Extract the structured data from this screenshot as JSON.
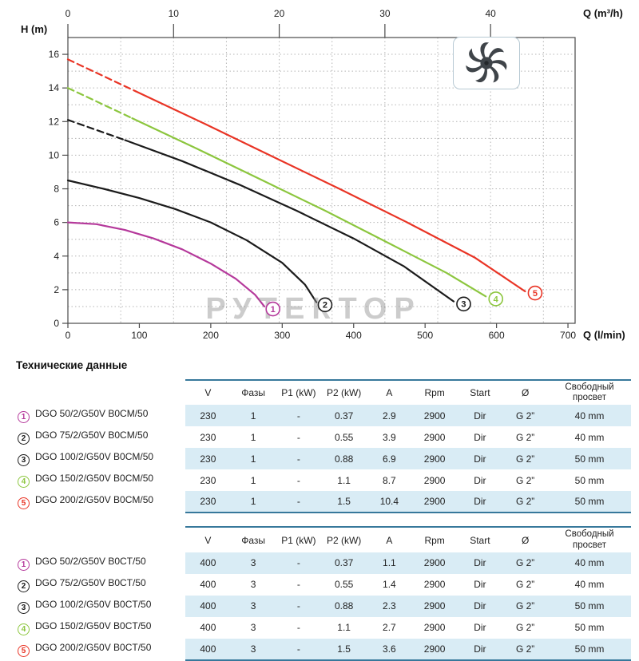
{
  "section_title": "Технические данные",
  "watermark": "РУТЕКТОР",
  "chart_data": {
    "type": "line",
    "title": "",
    "y_axis": {
      "label": "H (m)",
      "range": [
        0,
        17
      ],
      "ticks": [
        0,
        2,
        4,
        6,
        8,
        10,
        12,
        14,
        16
      ],
      "grid_step": 1
    },
    "x_axis_bottom": {
      "label": "Q (l/min)",
      "range": [
        0,
        710
      ],
      "ticks": [
        0,
        100,
        200,
        300,
        400,
        500,
        600,
        700
      ]
    },
    "x_axis_top": {
      "label": "Q (m³/h)",
      "range": [
        0,
        48
      ],
      "ticks": [
        0,
        10,
        20,
        30,
        40
      ],
      "grid_step": 5
    },
    "grid": true,
    "legend_position": "end-of-curve-badges",
    "series": [
      {
        "id": "1",
        "model": "DGO 50",
        "color": "#b5399b",
        "dash_until": 0,
        "points": [
          [
            0,
            6.0
          ],
          [
            40,
            5.9
          ],
          [
            80,
            5.55
          ],
          [
            120,
            5.05
          ],
          [
            160,
            4.4
          ],
          [
            200,
            3.55
          ],
          [
            235,
            2.65
          ],
          [
            262,
            1.7
          ],
          [
            275,
            1.0
          ]
        ],
        "marker": [
          287,
          0.85
        ]
      },
      {
        "id": "2",
        "model": "DGO 75",
        "color": "#1b1b1b",
        "dash_until": 0,
        "points": [
          [
            0,
            8.5
          ],
          [
            50,
            8.0
          ],
          [
            100,
            7.45
          ],
          [
            150,
            6.8
          ],
          [
            200,
            6.0
          ],
          [
            250,
            4.95
          ],
          [
            300,
            3.6
          ],
          [
            332,
            2.3
          ],
          [
            348,
            1.25
          ]
        ],
        "marker": [
          360,
          1.1
        ]
      },
      {
        "id": "3",
        "model": "DGO 100",
        "color": "#1b1b1b",
        "dash_until": 80,
        "points": [
          [
            0,
            12.1
          ],
          [
            80,
            10.9
          ],
          [
            160,
            9.65
          ],
          [
            240,
            8.25
          ],
          [
            320,
            6.7
          ],
          [
            400,
            5.05
          ],
          [
            470,
            3.4
          ],
          [
            540,
            1.3
          ]
        ],
        "marker": [
          554,
          1.15
        ]
      },
      {
        "id": "4",
        "model": "DGO 150",
        "color": "#8cc63e",
        "dash_until": 90,
        "points": [
          [
            0,
            14.0
          ],
          [
            90,
            12.2
          ],
          [
            180,
            10.4
          ],
          [
            270,
            8.55
          ],
          [
            360,
            6.7
          ],
          [
            450,
            4.75
          ],
          [
            530,
            3.0
          ],
          [
            585,
            1.6
          ]
        ],
        "marker": [
          599,
          1.45
        ]
      },
      {
        "id": "5",
        "model": "DGO 200",
        "color": "#e93425",
        "dash_until": 95,
        "points": [
          [
            0,
            15.7
          ],
          [
            95,
            13.8
          ],
          [
            190,
            11.9
          ],
          [
            285,
            9.95
          ],
          [
            380,
            8.0
          ],
          [
            475,
            6.0
          ],
          [
            570,
            3.9
          ],
          [
            640,
            1.9
          ]
        ],
        "marker": [
          654,
          1.8
        ]
      }
    ]
  },
  "tables": [
    {
      "name": "single-phase",
      "columns": [
        "V",
        "Фазы",
        "P1 (kW)",
        "P2 (kW)",
        "A",
        "Rpm",
        "Start",
        "Ø",
        "Свободный просвет"
      ],
      "rows": [
        {
          "num": "1",
          "color": "#b5399b",
          "model": "DGO 50/2/G50V B0CM/50",
          "values": [
            "230",
            "1",
            "-",
            "0.37",
            "2.9",
            "2900",
            "Dir",
            "G 2”",
            "40 mm"
          ]
        },
        {
          "num": "2",
          "color": "#1b1b1b",
          "model": "DGO 75/2/G50V B0CM/50",
          "values": [
            "230",
            "1",
            "-",
            "0.55",
            "3.9",
            "2900",
            "Dir",
            "G 2”",
            "40 mm"
          ]
        },
        {
          "num": "3",
          "color": "#1b1b1b",
          "model": "DGO 100/2/G50V B0CM/50",
          "values": [
            "230",
            "1",
            "-",
            "0.88",
            "6.9",
            "2900",
            "Dir",
            "G 2”",
            "50 mm"
          ]
        },
        {
          "num": "4",
          "color": "#8cc63e",
          "model": "DGO 150/2/G50V B0CM/50",
          "values": [
            "230",
            "1",
            "-",
            "1.1",
            "8.7",
            "2900",
            "Dir",
            "G 2”",
            "50 mm"
          ]
        },
        {
          "num": "5",
          "color": "#e93425",
          "model": "DGO 200/2/G50V B0CM/50",
          "values": [
            "230",
            "1",
            "-",
            "1.5",
            "10.4",
            "2900",
            "Dir",
            "G 2”",
            "50 mm"
          ]
        }
      ]
    },
    {
      "name": "three-phase",
      "columns": [
        "V",
        "Фазы",
        "P1 (kW)",
        "P2 (kW)",
        "A",
        "Rpm",
        "Start",
        "Ø",
        "Свободный просвет"
      ],
      "rows": [
        {
          "num": "1",
          "color": "#b5399b",
          "model": "DGO 50/2/G50V B0CT/50",
          "values": [
            "400",
            "3",
            "-",
            "0.37",
            "1.1",
            "2900",
            "Dir",
            "G 2”",
            "40 mm"
          ]
        },
        {
          "num": "2",
          "color": "#1b1b1b",
          "model": "DGO 75/2/G50V B0CT/50",
          "values": [
            "400",
            "3",
            "-",
            "0.55",
            "1.4",
            "2900",
            "Dir",
            "G 2”",
            "40 mm"
          ]
        },
        {
          "num": "3",
          "color": "#1b1b1b",
          "model": "DGO 100/2/G50V B0CT/50",
          "values": [
            "400",
            "3",
            "-",
            "0.88",
            "2.3",
            "2900",
            "Dir",
            "G 2”",
            "50 mm"
          ]
        },
        {
          "num": "4",
          "color": "#8cc63e",
          "model": "DGO 150/2/G50V B0CT/50",
          "values": [
            "400",
            "3",
            "-",
            "1.1",
            "2.7",
            "2900",
            "Dir",
            "G 2”",
            "50 mm"
          ]
        },
        {
          "num": "5",
          "color": "#e93425",
          "model": "DGO 200/2/G50V B0CT/50",
          "values": [
            "400",
            "3",
            "-",
            "1.5",
            "3.6",
            "2900",
            "Dir",
            "G 2”",
            "50 mm"
          ]
        }
      ]
    }
  ]
}
